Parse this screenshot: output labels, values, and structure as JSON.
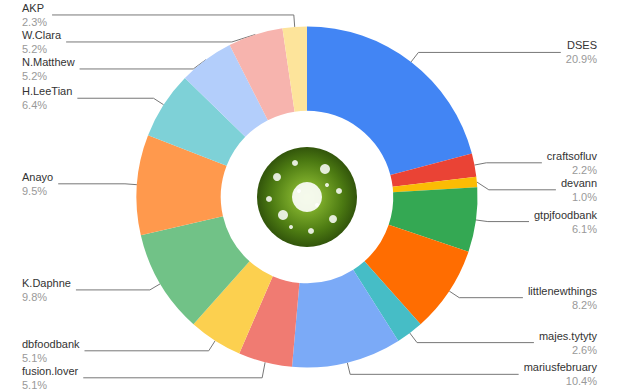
{
  "chart_data": {
    "type": "pie",
    "categories": [
      "DSES",
      "craftsofluv",
      "devann",
      "gtpjfoodbank",
      "littlenewthings",
      "majes.tytyty",
      "mariusfebruary",
      "fusion.lover",
      "dbfoodbank",
      "K.Daphne",
      "Anayo",
      "H.LeeTian",
      "N.Matthew",
      "W.Clara",
      "AKP"
    ],
    "values": [
      20.9,
      2.2,
      1.0,
      6.1,
      8.2,
      2.6,
      10.4,
      5.1,
      5.1,
      9.8,
      9.5,
      6.4,
      5.2,
      5.2,
      2.3
    ],
    "value_labels": [
      "20.9%",
      "2.2%",
      "1.0%",
      "6.1%",
      "8.2%",
      "2.6%",
      "10.4%",
      "5.1%",
      "5.1%",
      "9.8%",
      "9.5%",
      "6.4%",
      "5.2%",
      "5.2%",
      "2.3%"
    ],
    "colors": [
      "#4285f4",
      "#ea4335",
      "#fbbc04",
      "#34a853",
      "#ff6d01",
      "#46bdc6",
      "#7baaf7",
      "#f07b72",
      "#fcd04f",
      "#71c287",
      "#ff994d",
      "#7ed1d7",
      "#b3cefb",
      "#f7b4ae",
      "#fde49b"
    ],
    "data_labels": true
  }
}
